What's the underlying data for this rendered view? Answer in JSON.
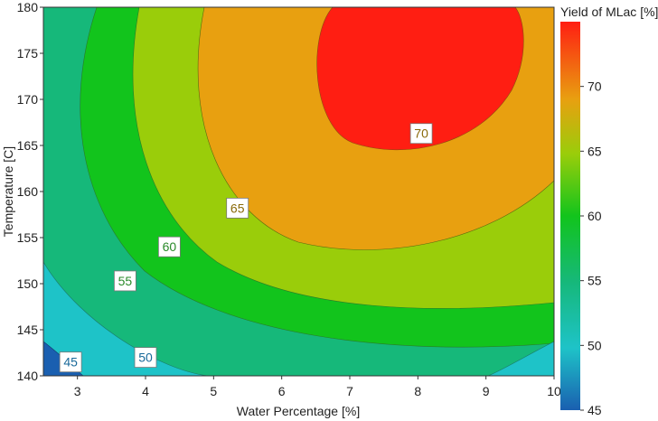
{
  "chart_data": {
    "type": "contour",
    "xlabel": "Water Percentage [%]",
    "ylabel": "Temperature [C]",
    "xlim": [
      2.5,
      10
    ],
    "ylim": [
      140,
      180
    ],
    "x_ticks": [
      3,
      4,
      5,
      6,
      7,
      8,
      9,
      10
    ],
    "y_ticks": [
      140,
      145,
      150,
      155,
      160,
      165,
      170,
      175,
      180
    ],
    "colorbar": {
      "title": "Yield of MLac [%]",
      "range": [
        45,
        75
      ],
      "ticks": [
        45,
        50,
        55,
        60,
        65,
        70
      ],
      "colors": [
        "#1a5fb0",
        "#1ec3c8",
        "#16b87a",
        "#12c41c",
        "#9acd0a",
        "#e8a010",
        "#f4821a",
        "#ff1e12"
      ]
    },
    "contour_levels": [
      45,
      50,
      55,
      60,
      65,
      70
    ],
    "level_labels": [
      {
        "text": "45",
        "x": 2.9,
        "y": 141.5
      },
      {
        "text": "50",
        "x": 4.0,
        "y": 142.0
      },
      {
        "text": "55",
        "x": 3.7,
        "y": 150.3
      },
      {
        "text": "60",
        "x": 4.35,
        "y": 154.0
      },
      {
        "text": "65",
        "x": 5.35,
        "y": 158.2
      },
      {
        "text": "70",
        "x": 8.05,
        "y": 166.3
      }
    ],
    "fill_colors": {
      "below_45": "#1a5fb0",
      "45_50": "#1ec3c8",
      "50_55": "#16b87a",
      "55_60": "#12c41c",
      "60_65": "#9acd0a",
      "65_70": "#e8a010",
      "above_70": "#ff1e12"
    }
  }
}
